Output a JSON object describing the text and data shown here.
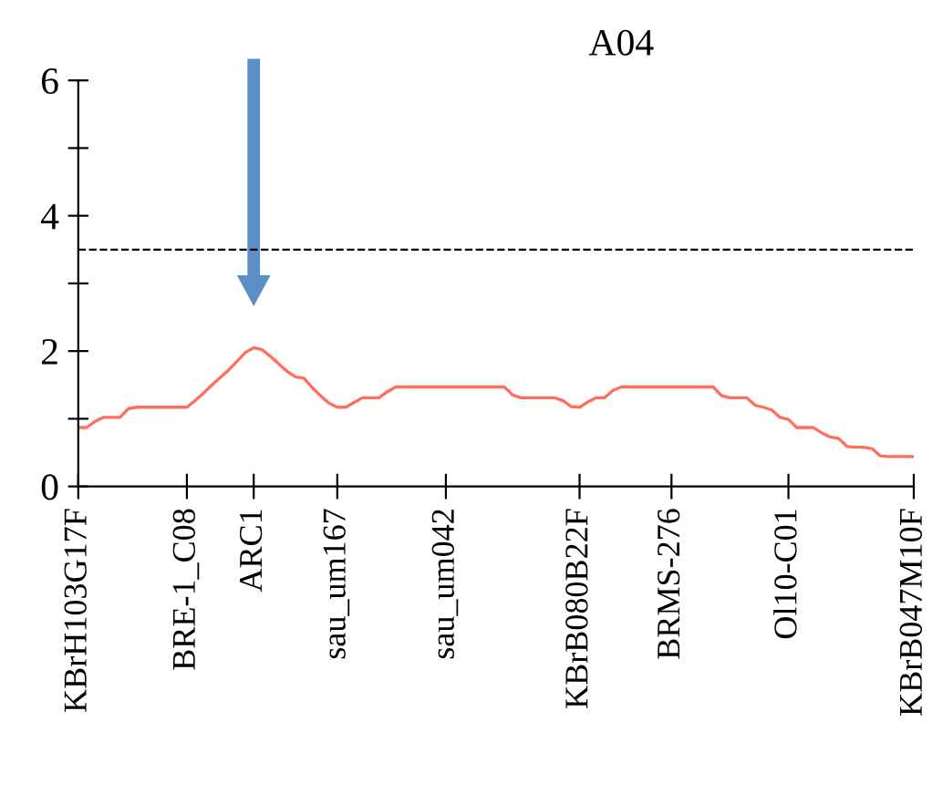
{
  "chart_data": {
    "type": "line",
    "title": "A04",
    "categories": [
      "KBrH103G17F",
      null,
      null,
      null,
      null,
      null,
      null,
      null,
      null,
      null,
      null,
      null,
      null,
      "BRE-1_C08",
      null,
      null,
      null,
      null,
      null,
      null,
      null,
      "ARC1",
      null,
      null,
      null,
      null,
      null,
      null,
      null,
      null,
      null,
      "sau_um167",
      null,
      null,
      null,
      null,
      null,
      null,
      null,
      null,
      null,
      null,
      null,
      null,
      "sau_um042",
      null,
      null,
      null,
      null,
      null,
      null,
      null,
      null,
      null,
      null,
      null,
      null,
      null,
      null,
      null,
      "KBrB080B22F",
      null,
      null,
      null,
      null,
      null,
      null,
      null,
      null,
      null,
      null,
      "BRMS-276",
      null,
      null,
      null,
      null,
      null,
      null,
      null,
      null,
      null,
      null,
      null,
      null,
      null,
      "Ol10-C01",
      null,
      null,
      null,
      null,
      null,
      null,
      null,
      null,
      null,
      null,
      null,
      null,
      null,
      null,
      "KBrB047M10F"
    ],
    "series": [
      {
        "color": "#ff6f5e",
        "values": [
          0.87,
          0.87,
          0.96,
          1.02,
          1.02,
          1.02,
          1.15,
          1.17,
          1.17,
          1.17,
          1.17,
          1.17,
          1.17,
          1.17,
          1.27,
          1.38,
          1.5,
          1.61,
          1.72,
          1.85,
          1.98,
          2.05,
          2.02,
          1.92,
          1.81,
          1.7,
          1.62,
          1.6,
          1.46,
          1.34,
          1.23,
          1.17,
          1.17,
          1.24,
          1.31,
          1.31,
          1.31,
          1.4,
          1.47,
          1.47,
          1.47,
          1.47,
          1.47,
          1.47,
          1.47,
          1.47,
          1.47,
          1.47,
          1.47,
          1.47,
          1.47,
          1.47,
          1.35,
          1.31,
          1.31,
          1.31,
          1.31,
          1.31,
          1.27,
          1.18,
          1.17,
          1.25,
          1.31,
          1.31,
          1.42,
          1.47,
          1.47,
          1.47,
          1.47,
          1.47,
          1.47,
          1.47,
          1.47,
          1.47,
          1.47,
          1.47,
          1.47,
          1.34,
          1.31,
          1.31,
          1.31,
          1.2,
          1.17,
          1.13,
          1.02,
          0.99,
          0.87,
          0.87,
          0.87,
          0.79,
          0.73,
          0.71,
          0.59,
          0.58,
          0.58,
          0.56,
          0.45,
          0.44,
          0.44,
          0.44,
          0.44
        ]
      }
    ],
    "ylim": [
      0,
      6
    ],
    "yticks": [
      0,
      {
        "value": 1,
        "label": null
      },
      2,
      {
        "value": 3,
        "label": null
      },
      4,
      {
        "value": 5,
        "label": null
      },
      6
    ],
    "ref_lines": [
      {
        "axis": "y",
        "value": 3.5,
        "color": "#000000",
        "line_style": "dashed"
      }
    ],
    "grid": false,
    "legend": false,
    "marker": "none",
    "line_style": "solid"
  }
}
